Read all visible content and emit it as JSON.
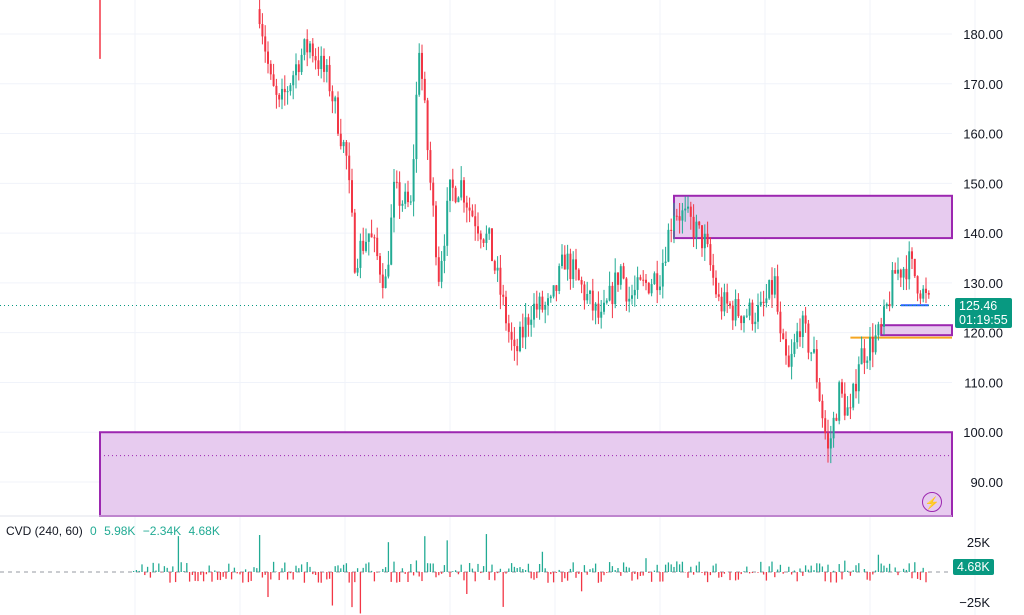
{
  "chart_data": {
    "type": "candlestick",
    "price_axis": {
      "ticks": [
        "180.00",
        "170.00",
        "160.00",
        "150.00",
        "140.00",
        "130.00",
        "120.00",
        "110.00",
        "100.00",
        "90.00"
      ],
      "range": [
        84,
        187
      ]
    },
    "price_path": [
      [
        0,
        178
      ],
      [
        57,
        185
      ],
      [
        61,
        170
      ],
      [
        64,
        165
      ],
      [
        71,
        175
      ],
      [
        75,
        178
      ],
      [
        82,
        170
      ],
      [
        88,
        155
      ],
      [
        91,
        135
      ],
      [
        96,
        140
      ],
      [
        102,
        130
      ],
      [
        105,
        148
      ],
      [
        111,
        145
      ],
      [
        114,
        178
      ],
      [
        118,
        150
      ],
      [
        121,
        132
      ],
      [
        125,
        148
      ],
      [
        129,
        150
      ],
      [
        132,
        145
      ],
      [
        139,
        138
      ],
      [
        143,
        128
      ],
      [
        148,
        115
      ],
      [
        154,
        125
      ],
      [
        161,
        125
      ],
      [
        166,
        135
      ],
      [
        171,
        130
      ],
      [
        179,
        122
      ],
      [
        186,
        133
      ],
      [
        189,
        127
      ],
      [
        200,
        132
      ],
      [
        205,
        145
      ],
      [
        211,
        142
      ],
      [
        216,
        138
      ],
      [
        221,
        126
      ],
      [
        229,
        124
      ],
      [
        236,
        124
      ],
      [
        241,
        130
      ],
      [
        243,
        118
      ],
      [
        246,
        112
      ],
      [
        250,
        122
      ],
      [
        255,
        115
      ],
      [
        260,
        96
      ],
      [
        264,
        108
      ],
      [
        268,
        103
      ],
      [
        271,
        115
      ],
      [
        279,
        120
      ],
      [
        284,
        132
      ],
      [
        289,
        134
      ],
      [
        296,
        125.46
      ]
    ],
    "last_price": "125.46",
    "countdown": "01:19:55",
    "zones": [
      {
        "name": "supply-zone",
        "from_bar": 205,
        "low": 139,
        "high": 147.5
      },
      {
        "name": "small-zone",
        "from_bar": 279,
        "low": 119.5,
        "high": 121.5
      },
      {
        "name": "demand-zone",
        "from_bar": 0,
        "low": 80,
        "high": 100
      }
    ],
    "lines": [
      {
        "name": "orange-level",
        "from_bar": 268,
        "price": 119,
        "color": "#f5a623"
      },
      {
        "name": "blue-level",
        "from_bar": 286,
        "to_bar": 296,
        "price": 125.5,
        "color": "#2962ff"
      },
      {
        "name": "dotted-low",
        "from_bar": 0,
        "price": 95.3,
        "color": "#9c27b0"
      }
    ],
    "colors": {
      "up": "#22ab94",
      "down": "#f23645",
      "zone_fill": "#e7cbef",
      "zone_border": "#9c27b0"
    },
    "indicator": {
      "title": "CVD (240, 60)",
      "values": [
        "0",
        "5.98K",
        "−2.34K",
        "4.68K"
      ],
      "ticks": [
        "25K",
        "−25K"
      ],
      "last_value": "4.68K"
    }
  }
}
